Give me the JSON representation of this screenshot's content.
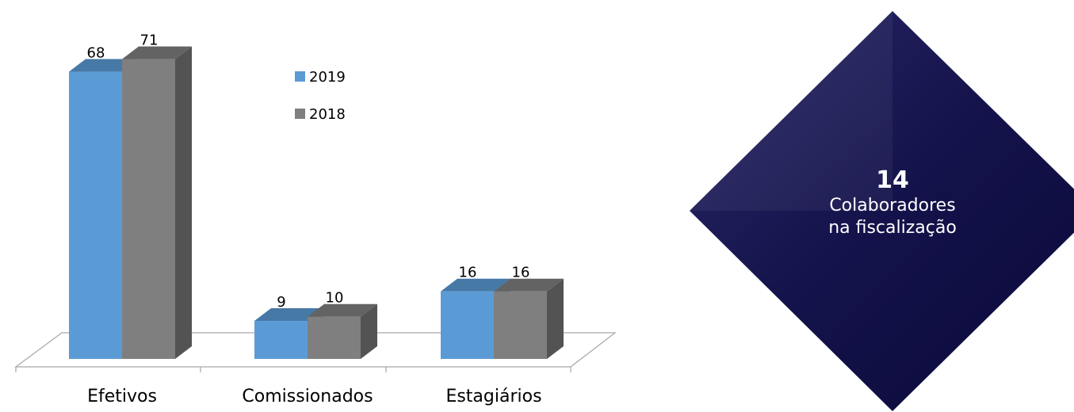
{
  "chart_data": {
    "type": "bar",
    "categories": [
      "Efetivos",
      "Comissionados",
      "Estagiários"
    ],
    "series": [
      {
        "name": "2019",
        "values": [
          68,
          9,
          16
        ],
        "color": "#5b9bd5"
      },
      {
        "name": "2018",
        "values": [
          71,
          10,
          16
        ],
        "color": "#7f7f7f"
      }
    ],
    "ylim": [
      0,
      75
    ],
    "legend_position": "top-center",
    "grid": false,
    "three_d": true
  },
  "kpi": {
    "value": "14",
    "caption": "Colaboradores\nna fiscalização",
    "background": "#13124a"
  }
}
